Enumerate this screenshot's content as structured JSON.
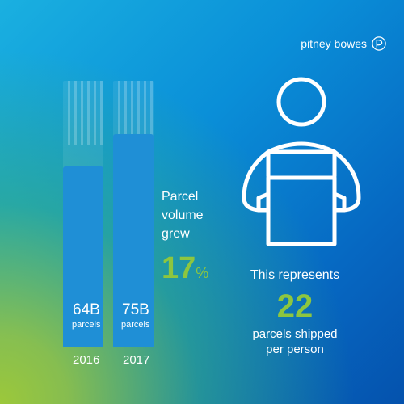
{
  "brand": {
    "name": "pitney bowes",
    "icon": "pitney-bowes-logo-icon"
  },
  "parcels": [
    {
      "value": "64B",
      "unit": "parcels",
      "year": "2016",
      "fill": 0.68
    },
    {
      "value": "75B",
      "unit": "parcels",
      "year": "2017",
      "fill": 0.8
    }
  ],
  "growth": {
    "line1": "Parcel",
    "line2": "volume",
    "line3": "grew",
    "value": "17",
    "unit": "%"
  },
  "per_person": {
    "intro": "This represents",
    "value": "22",
    "line1": "parcels shipped",
    "line2": "per person"
  },
  "colors": {
    "accent_green": "#8dc63f",
    "bar_blue": "#1f8fd6",
    "text": "#ffffff"
  },
  "icons": {
    "figure": "person-carrying-box-icon"
  }
}
